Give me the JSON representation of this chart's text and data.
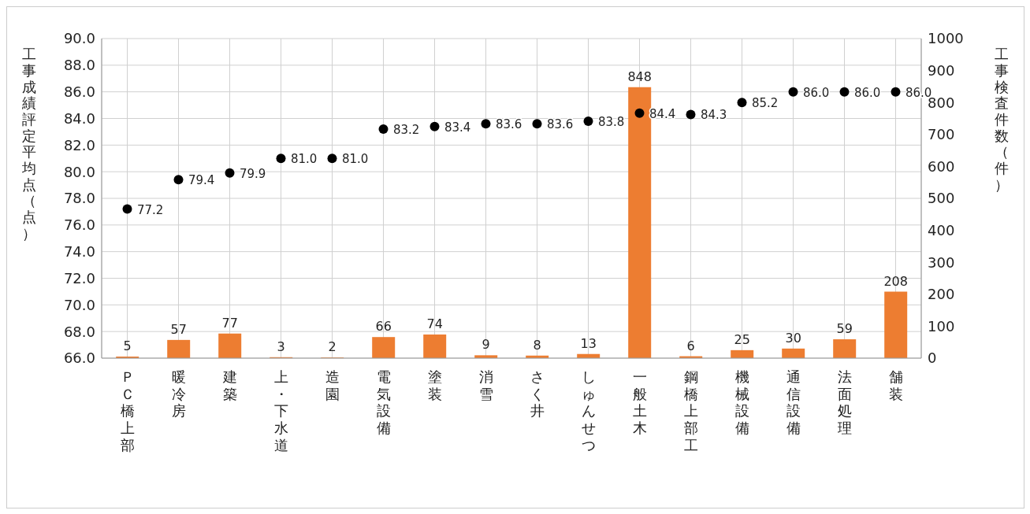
{
  "chart_data": {
    "type": "bar",
    "ylabel": "工事成績評定平均点（点）",
    "y2label": "工事検査件数（件）",
    "categories": [
      "ＰＣ橋上部",
      "暖冷房",
      "建築",
      "上・下水道",
      "造園",
      "電気設備",
      "塗装",
      "消雪",
      "さく井",
      "しゅんせつ",
      "一般土木",
      "鋼橋上部工",
      "機械設備",
      "通信設備",
      "法面処理",
      "舗装"
    ],
    "series": [
      {
        "axis": "y2",
        "color": "#ed7d31",
        "values": [
          5,
          57,
          77,
          3,
          2,
          66,
          74,
          9,
          8,
          13,
          848,
          6,
          25,
          30,
          59,
          208
        ],
        "value_labels": [
          "5",
          "57",
          "77",
          "3",
          "2",
          "66",
          "74",
          "9",
          "8",
          "13",
          "848",
          "6",
          "25",
          "30",
          "59",
          "208"
        ]
      },
      {
        "type": "scatter",
        "color": "#000000",
        "marker": "circle",
        "values": [
          77.2,
          79.4,
          79.9,
          81.0,
          81.0,
          83.2,
          83.4,
          83.6,
          83.6,
          83.8,
          84.4,
          84.3,
          85.2,
          86.0,
          86.0,
          86.0
        ],
        "value_labels": [
          "77.2",
          "79.4",
          "79.9",
          "81.0",
          "81.0",
          "83.2",
          "83.4",
          "83.6",
          "83.6",
          "83.8",
          "84.4",
          "84.3",
          "85.2",
          "86.0",
          "86.0",
          "86.0"
        ]
      }
    ],
    "ylim": [
      66,
      90
    ],
    "yticks": [
      {
        "value": 66,
        "label": "66.0"
      },
      {
        "value": 68,
        "label": "68.0"
      },
      {
        "value": 70,
        "label": "70.0"
      },
      {
        "value": 72,
        "label": "72.0"
      },
      {
        "value": 74,
        "label": "74.0"
      },
      {
        "value": 76,
        "label": "76.0"
      },
      {
        "value": 78,
        "label": "78.0"
      },
      {
        "value": 80,
        "label": "80.0"
      },
      {
        "value": 82,
        "label": "82.0"
      },
      {
        "value": 84,
        "label": "84.0"
      },
      {
        "value": 86,
        "label": "86.0"
      },
      {
        "value": 88,
        "label": "88.0"
      },
      {
        "value": 90,
        "label": "90.0"
      }
    ],
    "y2lim": [
      0,
      1000
    ],
    "y2ticks": [
      0,
      100,
      200,
      300,
      400,
      500,
      600,
      700,
      800,
      900,
      1000
    ],
    "grid": true,
    "legend": false
  }
}
